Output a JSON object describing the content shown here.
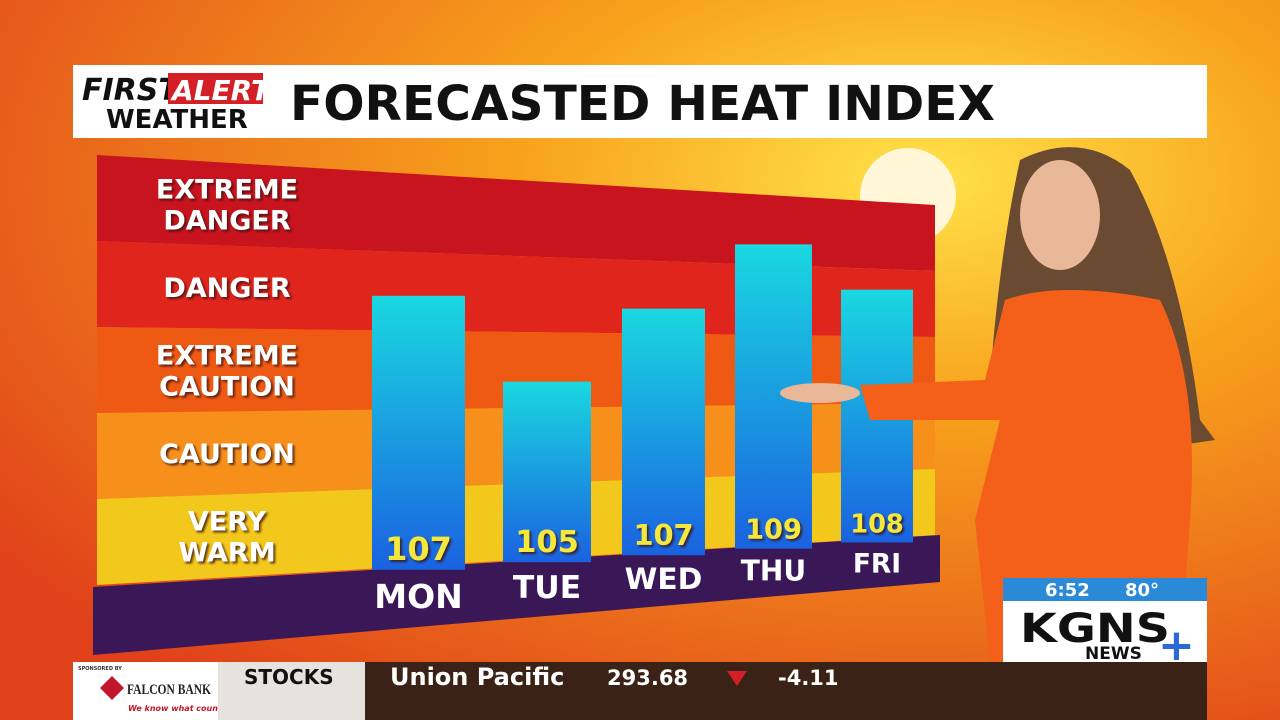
{
  "header": {
    "brand_line1": "FIRST",
    "brand_alert": "ALERT",
    "brand_line2": "WEATHER",
    "title": "FORECASTED HEAT INDEX"
  },
  "chart_data": {
    "type": "bar",
    "categories": [
      "MON",
      "TUE",
      "WED",
      "THU",
      "FRI"
    ],
    "values": [
      107,
      105,
      107,
      109,
      108
    ],
    "bands": [
      [
        "EXTREME",
        "DANGER"
      ],
      [
        "DANGER"
      ],
      [
        "EXTREME",
        "CAUTION"
      ],
      [
        "CAUTION"
      ],
      [
        "VERY",
        "WARM"
      ]
    ],
    "band_colors": [
      "#c8141e",
      "#e0251c",
      "#ee5a14",
      "#f6901a",
      "#f2c81c"
    ],
    "color": "#1aa8e0"
  },
  "bug": {
    "time": "6:52",
    "temp": "80°",
    "station": "KGNS",
    "sub": "NEWS"
  },
  "ticker": {
    "sponsor_label": "SPONSORED BY",
    "sponsor": "FALCON BANK",
    "tagline": "We know what counts",
    "section": "STOCKS",
    "name": "Union Pacific",
    "price": 293.68,
    "change": -4.11
  }
}
